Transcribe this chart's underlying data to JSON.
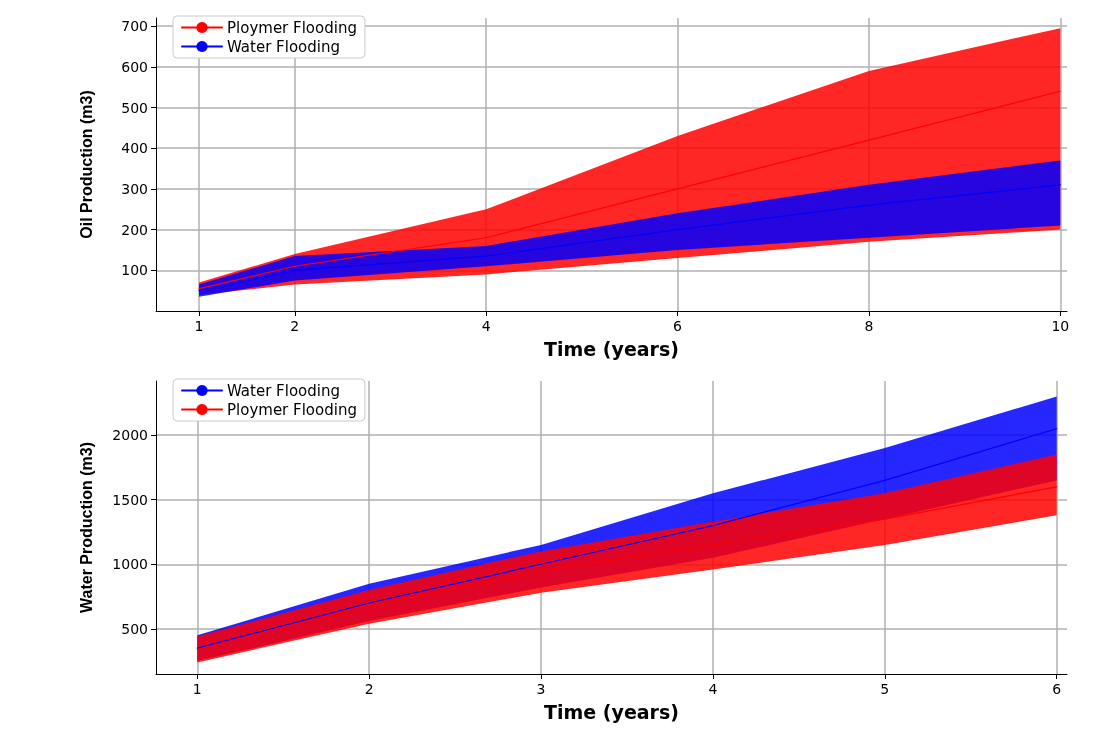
{
  "chart_data": [
    {
      "type": "line",
      "xlabel": "Time (years)",
      "ylabel": "Oil Production (m3)",
      "x": [
        1,
        2,
        4,
        6,
        8,
        10
      ],
      "xlim": [
        0.55,
        10.07
      ],
      "xticks": [
        1,
        2,
        4,
        6,
        8,
        10
      ],
      "ylim": [
        0,
        720
      ],
      "yticks": [
        100,
        200,
        300,
        400,
        500,
        600,
        700
      ],
      "grid": true,
      "legend": "top left",
      "marker": "none",
      "line_style": "solid",
      "series": [
        {
          "name": "Ploymer Flooding",
          "color": "#ff0000",
          "values": [
            55,
            110,
            180,
            300,
            420,
            540
          ],
          "lower": [
            40,
            65,
            90,
            130,
            170,
            200
          ],
          "upper": [
            70,
            140,
            250,
            430,
            590,
            695
          ]
        },
        {
          "name": "Water Flooding",
          "color": "#0000ff",
          "values": [
            50,
            100,
            135,
            200,
            260,
            310
          ],
          "lower": [
            35,
            75,
            110,
            150,
            180,
            210
          ],
          "upper": [
            65,
            135,
            160,
            240,
            310,
            370
          ]
        }
      ]
    },
    {
      "type": "line",
      "xlabel": "Time (years)",
      "ylabel": "Water Production (m3)",
      "x": [
        1,
        2,
        3,
        4,
        5,
        6
      ],
      "xlim": [
        0.76,
        6.06
      ],
      "xticks": [
        1,
        2,
        3,
        4,
        5,
        6
      ],
      "ylim": [
        150,
        2420
      ],
      "yticks": [
        500,
        1000,
        1500,
        2000
      ],
      "grid": true,
      "legend": "top left",
      "marker": "none",
      "line_style": "solid",
      "series": [
        {
          "name": "Water Flooding",
          "color": "#0000ff",
          "values": [
            350,
            700,
            1000,
            1300,
            1650,
            2050
          ],
          "lower": [
            250,
            560,
            820,
            1050,
            1350,
            1650
          ],
          "upper": [
            450,
            850,
            1150,
            1550,
            1900,
            2300
          ]
        },
        {
          "name": "Ploymer Flooding",
          "color": "#ff0000",
          "values": [
            340,
            680,
            950,
            1150,
            1350,
            1600
          ],
          "lower": [
            240,
            540,
            780,
            960,
            1150,
            1380
          ],
          "upper": [
            440,
            800,
            1100,
            1330,
            1550,
            1850
          ]
        }
      ]
    }
  ]
}
